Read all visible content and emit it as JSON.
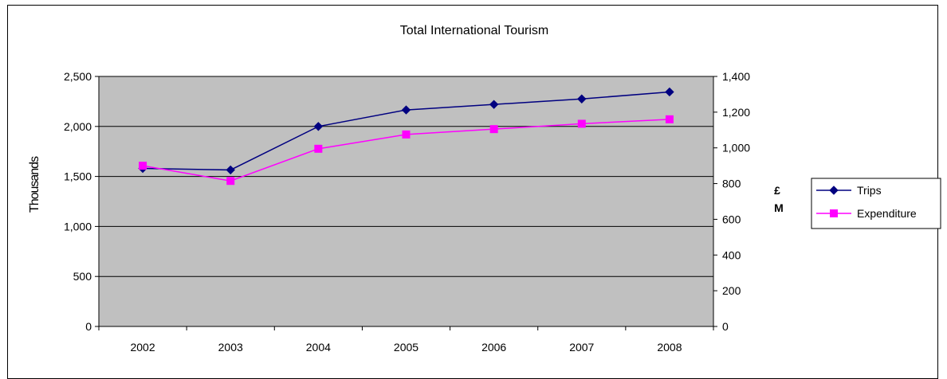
{
  "chart_data": {
    "type": "line",
    "title": "Total International Tourism",
    "categories": [
      "2002",
      "2003",
      "2004",
      "2005",
      "2006",
      "2007",
      "2008"
    ],
    "ylabel_left": "Thousands",
    "ylabel_right_line1": "£",
    "ylabel_right_line2": "M",
    "ylim_left": [
      0,
      2500
    ],
    "ylim_right": [
      0,
      1400
    ],
    "left_ticks": [
      "0",
      "500",
      "1,000",
      "1,500",
      "2,000",
      "2,500"
    ],
    "left_tick_values": [
      0,
      500,
      1000,
      1500,
      2000,
      2500
    ],
    "right_ticks": [
      "0",
      "200",
      "400",
      "600",
      "800",
      "1,000",
      "1,200",
      "1,400"
    ],
    "right_tick_values": [
      0,
      200,
      400,
      600,
      800,
      1000,
      1200,
      1400
    ],
    "grid": true,
    "legend_position": "right",
    "plot_background": "#c0c0c0",
    "series": [
      {
        "name": "Trips",
        "axis": "left",
        "color": "#000080",
        "marker": "diamond",
        "values": [
          1580,
          1565,
          2000,
          2165,
          2220,
          2275,
          2345
        ]
      },
      {
        "name": "Expenditure",
        "axis": "right",
        "color": "#ff00ff",
        "marker": "square",
        "values": [
          900,
          815,
          995,
          1075,
          1105,
          1135,
          1160
        ]
      }
    ]
  }
}
